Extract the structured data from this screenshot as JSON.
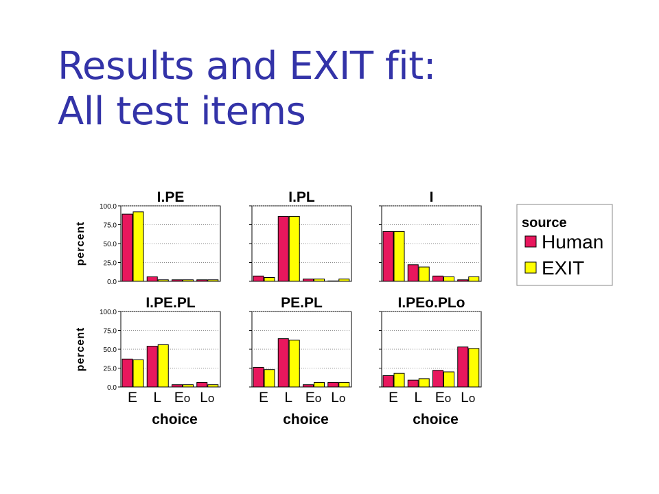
{
  "slide": {
    "title_line1": "Results and EXIT fit:",
    "title_line2": "All test items"
  },
  "colors": {
    "human": "#e8175d",
    "exit": "#ffff00",
    "title": "#3333a8",
    "panel_bg": "#ffffff",
    "grid": "#888888"
  },
  "chart_data": [
    {
      "type": "bar",
      "title": "I.PE",
      "categories": [
        "E",
        "L",
        "Eo",
        "Lo"
      ],
      "series": [
        {
          "name": "Human",
          "values": [
            89,
            6,
            2,
            2
          ]
        },
        {
          "name": "EXIT",
          "values": [
            92,
            2,
            2,
            2
          ]
        }
      ],
      "ylabel": "percent",
      "xlabel": "",
      "ylim": [
        0,
        100
      ],
      "yticks": [
        "100.0",
        "75.0",
        "50.0",
        "25.0",
        "0.0"
      ],
      "show_xticks": false,
      "grid": true
    },
    {
      "type": "bar",
      "title": "I.PL",
      "categories": [
        "E",
        "L",
        "Eo",
        "Lo"
      ],
      "series": [
        {
          "name": "Human",
          "values": [
            7,
            86,
            3,
            0.5
          ]
        },
        {
          "name": "EXIT",
          "values": [
            5,
            86,
            3,
            3
          ]
        }
      ],
      "ylabel": "",
      "xlabel": "",
      "ylim": [
        0,
        100
      ],
      "yticks": [],
      "show_xticks": false,
      "grid": true
    },
    {
      "type": "bar",
      "title": "I",
      "categories": [
        "E",
        "L",
        "Eo",
        "Lo"
      ],
      "series": [
        {
          "name": "Human",
          "values": [
            66,
            22,
            7,
            2
          ]
        },
        {
          "name": "EXIT",
          "values": [
            66,
            19,
            6,
            6
          ]
        }
      ],
      "ylabel": "",
      "xlabel": "",
      "ylim": [
        0,
        100
      ],
      "yticks": [],
      "show_xticks": false,
      "grid": true
    },
    {
      "type": "bar",
      "title": "I.PE.PL",
      "categories": [
        "E",
        "L",
        "Eo",
        "Lo"
      ],
      "series": [
        {
          "name": "Human",
          "values": [
            37,
            54,
            3,
            6
          ]
        },
        {
          "name": "EXIT",
          "values": [
            36,
            56,
            3,
            3
          ]
        }
      ],
      "ylabel": "percent",
      "xlabel": "choice",
      "ylim": [
        0,
        100
      ],
      "yticks": [
        "100.0",
        "75.0",
        "50.0",
        "25.0",
        "0.0"
      ],
      "show_xticks": true,
      "grid": true
    },
    {
      "type": "bar",
      "title": "PE.PL",
      "categories": [
        "E",
        "L",
        "Eo",
        "Lo"
      ],
      "series": [
        {
          "name": "Human",
          "values": [
            26,
            64,
            3,
            6
          ]
        },
        {
          "name": "EXIT",
          "values": [
            23,
            62,
            6,
            6
          ]
        }
      ],
      "ylabel": "",
      "xlabel": "choice",
      "ylim": [
        0,
        100
      ],
      "yticks": [],
      "show_xticks": true,
      "grid": true
    },
    {
      "type": "bar",
      "title": "I.PEo.PLo",
      "categories": [
        "E",
        "L",
        "Eo",
        "Lo"
      ],
      "series": [
        {
          "name": "Human",
          "values": [
            15,
            9,
            22,
            53
          ]
        },
        {
          "name": "EXIT",
          "values": [
            18,
            11,
            20,
            51
          ]
        }
      ],
      "ylabel": "",
      "xlabel": "choice",
      "ylim": [
        0,
        100
      ],
      "yticks": [],
      "show_xticks": true,
      "grid": true
    }
  ],
  "legend": {
    "title": "source",
    "items": [
      "Human",
      "EXIT"
    ],
    "placement": "right"
  }
}
